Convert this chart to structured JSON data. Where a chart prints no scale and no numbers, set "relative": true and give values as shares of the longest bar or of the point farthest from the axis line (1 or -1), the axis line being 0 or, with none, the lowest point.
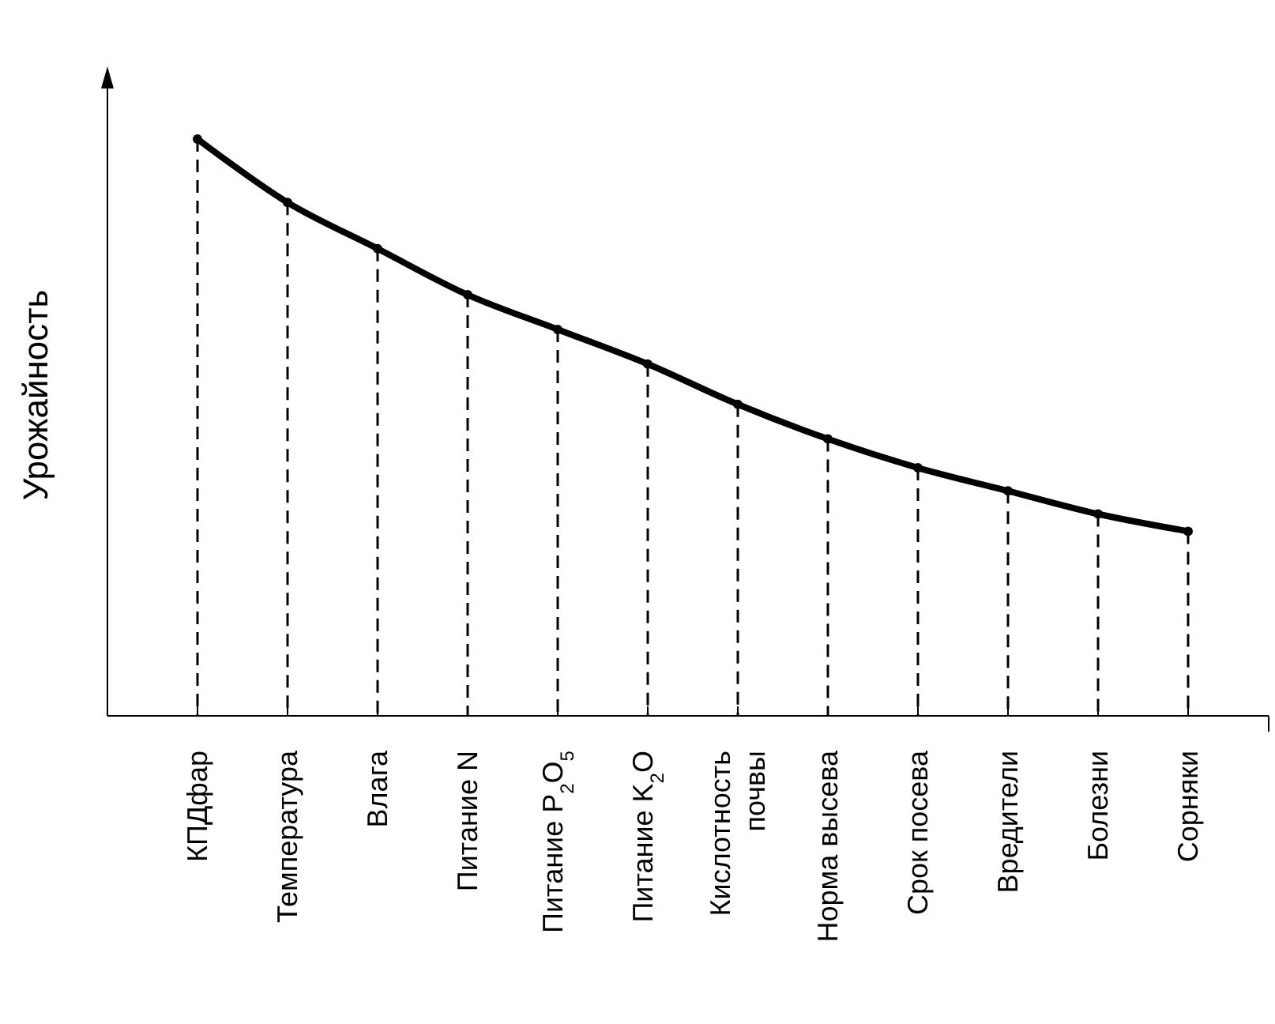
{
  "chart_data": {
    "type": "line",
    "relative": true,
    "ylabel": "Урожайность",
    "categories": [
      "КПДфар",
      "Температура",
      "Влага",
      "Питание N",
      "Питание P$_{2}$O$_{5}$",
      "Питание K$_{2}$O",
      "Кислотность почвы",
      "Норма высева",
      "Срок посева",
      "Вредители",
      "Болезни",
      "Сорняки"
    ],
    "series": [
      {
        "color": "#000000",
        "values": [
          1,
          0.89,
          0.81,
          0.73,
          0.67,
          0.61,
          0.54,
          0.48,
          0.43,
          0.39,
          0.35,
          0.32
        ]
      },
      {
        "type": "lollipop",
        "line_style": "dashed",
        "marker": "circle",
        "color": "#000000",
        "values": [
          1,
          0.89,
          0.81,
          0.73,
          0.67,
          0.61,
          0.54,
          0.48,
          0.43,
          0.39,
          0.35,
          0.32
        ]
      }
    ],
    "grid": "x",
    "marker": "none",
    "line_style": "solid"
  }
}
